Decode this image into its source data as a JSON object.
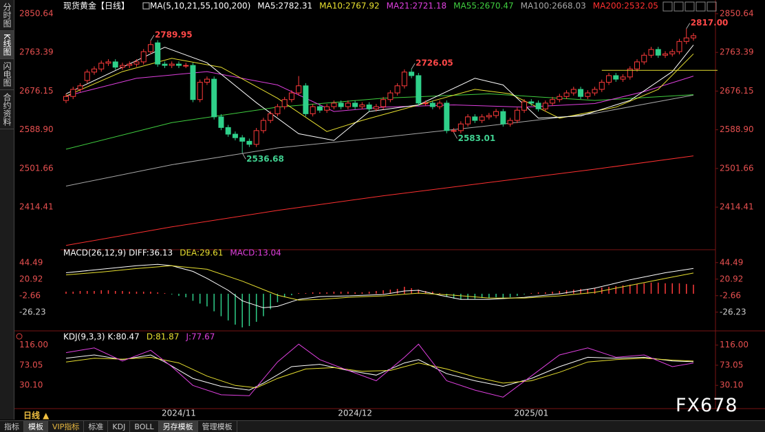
{
  "header": {
    "title": "现货黄金【日线】"
  },
  "sidebar": [
    "分时图",
    "K线图",
    "闪电图",
    "合约资料"
  ],
  "toolbar": {
    "period": "日线 ▲",
    "buttons": [
      "指标",
      "模板",
      "VIP指标",
      "标准",
      "KDJ",
      "BOLL",
      "另存模板",
      "管理模板"
    ]
  },
  "watermark": "FX678",
  "chart_data": [
    {
      "type": "candlestick",
      "legend_title": "MA(5,10,21,55,100,200)",
      "up_color": "#ff3b3b",
      "down_color": "#2fd08a",
      "open": [
        2655,
        2664,
        2680,
        2700,
        2719,
        2726,
        2739,
        2742,
        2730,
        2734,
        2737,
        2742,
        2765,
        2785,
        2737,
        2734,
        2737,
        2734,
        2734,
        2657,
        2696,
        2703,
        2618,
        2594,
        2579,
        2571,
        2563,
        2556,
        2587,
        2610,
        2625,
        2641,
        2657,
        2672,
        2688,
        2625,
        2641,
        2633,
        2641,
        2649,
        2641,
        2649,
        2641,
        2645,
        2636,
        2641,
        2657,
        2672,
        2688,
        2719,
        2711,
        2649,
        2649,
        2641,
        2649,
        2587,
        2587,
        2602,
        2618,
        2610,
        2618,
        2621,
        2630,
        2602,
        2610,
        2633,
        2652,
        2649,
        2636,
        2649,
        2657,
        2664,
        2672,
        2680,
        2664,
        2672,
        2680,
        2696,
        2711,
        2703,
        2708,
        2726,
        2742,
        2757,
        2770,
        2757,
        2760,
        2765,
        2788,
        2796
      ],
      "high": [
        2670,
        2686,
        2694,
        2725,
        2732,
        2745,
        2748,
        2748,
        2740,
        2743,
        2748,
        2771,
        2789.95,
        2791,
        2743,
        2743,
        2743,
        2740,
        2740,
        2702,
        2709,
        2709,
        2624,
        2600,
        2585,
        2577,
        2569,
        2593,
        2616,
        2631,
        2647,
        2663,
        2678,
        2710,
        2694,
        2647,
        2647,
        2647,
        2655,
        2655,
        2655,
        2655,
        2651,
        2651,
        2647,
        2663,
        2678,
        2694,
        2725,
        2726.05,
        2717,
        2655,
        2655,
        2655,
        2655,
        2593,
        2608,
        2624,
        2624,
        2624,
        2627,
        2636,
        2636,
        2616,
        2639,
        2658,
        2658,
        2655,
        2655,
        2663,
        2670,
        2678,
        2686,
        2686,
        2678,
        2686,
        2702,
        2717,
        2717,
        2714,
        2732,
        2748,
        2763,
        2776,
        2776,
        2766,
        2771,
        2794,
        2817,
        2807
      ],
      "low": [
        2649,
        2658,
        2674,
        2694,
        2713,
        2720,
        2733,
        2724,
        2724,
        2728,
        2731,
        2736,
        2759,
        2731,
        2728,
        2728,
        2728,
        2728,
        2651,
        2651,
        2690,
        2612,
        2588,
        2573,
        2565,
        2536.68,
        2550,
        2550,
        2581,
        2604,
        2619,
        2635,
        2651,
        2666,
        2619,
        2619,
        2627,
        2627,
        2635,
        2635,
        2635,
        2635,
        2635,
        2630,
        2630,
        2635,
        2651,
        2666,
        2682,
        2705,
        2643,
        2643,
        2635,
        2635,
        2581,
        2583.01,
        2581,
        2596,
        2604,
        2604,
        2612,
        2615,
        2596,
        2596,
        2604,
        2627,
        2643,
        2630,
        2630,
        2643,
        2651,
        2658,
        2666,
        2658,
        2658,
        2666,
        2674,
        2690,
        2697,
        2697,
        2702,
        2720,
        2736,
        2751,
        2751,
        2751,
        2754,
        2759,
        2782,
        2790
      ],
      "close": [
        2664,
        2680,
        2688,
        2719,
        2726,
        2739,
        2742,
        2730,
        2734,
        2737,
        2742,
        2765,
        2781,
        2737,
        2734,
        2737,
        2734,
        2734,
        2657,
        2696,
        2703,
        2618,
        2594,
        2579,
        2571,
        2563,
        2556,
        2587,
        2610,
        2625,
        2641,
        2657,
        2672,
        2688,
        2625,
        2641,
        2633,
        2641,
        2649,
        2641,
        2649,
        2641,
        2645,
        2636,
        2641,
        2657,
        2672,
        2688,
        2719,
        2711,
        2649,
        2649,
        2641,
        2649,
        2587,
        2587,
        2602,
        2618,
        2610,
        2618,
        2621,
        2630,
        2602,
        2610,
        2633,
        2652,
        2649,
        2636,
        2649,
        2657,
        2664,
        2672,
        2680,
        2664,
        2672,
        2680,
        2696,
        2711,
        2703,
        2708,
        2726,
        2742,
        2757,
        2770,
        2757,
        2760,
        2765,
        2788,
        2796,
        2801
      ],
      "ylim": [
        2320,
        2866
      ],
      "yticks": [
        2850.64,
        2763.39,
        2676.15,
        {
          "value": 2588.9,
          "label": "2588.90"
        },
        2501.66,
        2414.41
      ],
      "annotations": [
        {
          "index": 12,
          "value": 2789.95,
          "kind": "high"
        },
        {
          "index": 25,
          "value": 2536.68,
          "kind": "low"
        },
        {
          "index": 49,
          "value": 2726.05,
          "kind": "high"
        },
        {
          "index": 55,
          "value": 2583.01,
          "kind": "low"
        },
        {
          "index": 88,
          "value": 2817,
          "label": "2817.00",
          "kind": "high"
        }
      ],
      "hline": {
        "value": 2723,
        "from_index": 76,
        "color": "#e8e030"
      },
      "xlabels": [
        {
          "index": 16,
          "label": "2024/11"
        },
        {
          "index": 41,
          "label": "2024/12"
        },
        {
          "index": 66,
          "label": "2025/01"
        }
      ],
      "series": [
        {
          "name": "MA5:2782.31",
          "color": "#ffffff",
          "x": [
            0,
            8,
            14,
            20,
            27,
            33,
            38,
            43,
            50,
            58,
            62,
            67,
            73,
            80,
            86,
            89
          ],
          "values": [
            2670,
            2730,
            2775,
            2740,
            2650,
            2580,
            2565,
            2630,
            2645,
            2705,
            2690,
            2615,
            2620,
            2655,
            2720,
            2780
          ]
        },
        {
          "name": "MA10:2767.92",
          "color": "#e8e030",
          "x": [
            0,
            8,
            15,
            22,
            30,
            37,
            42,
            50,
            58,
            63,
            70,
            78,
            84,
            89
          ],
          "values": [
            2665,
            2720,
            2750,
            2730,
            2660,
            2585,
            2610,
            2645,
            2680,
            2670,
            2615,
            2640,
            2680,
            2760
          ]
        },
        {
          "name": "MA21:2721.18",
          "color": "#e040e0",
          "x": [
            0,
            10,
            20,
            30,
            38,
            45,
            55,
            65,
            75,
            82,
            89
          ],
          "values": [
            2665,
            2705,
            2720,
            2690,
            2630,
            2640,
            2645,
            2640,
            2648,
            2675,
            2710
          ]
        },
        {
          "name": "MA55:2670.47",
          "color": "#40d040",
          "x": [
            0,
            15,
            30,
            45,
            60,
            75,
            89
          ],
          "values": [
            2545,
            2605,
            2640,
            2660,
            2670,
            2655,
            2668
          ]
        },
        {
          "name": "MA100:2668.03",
          "color": "#a8a8a8",
          "x": [
            0,
            15,
            30,
            45,
            60,
            75,
            89
          ],
          "values": [
            2462,
            2510,
            2548,
            2572,
            2598,
            2626,
            2667
          ]
        },
        {
          "name": "MA200:2532.05",
          "color": "#ff3030",
          "x": [
            0,
            15,
            30,
            45,
            60,
            75,
            89
          ],
          "values": [
            2328,
            2370,
            2407,
            2440,
            2470,
            2500,
            2530
          ]
        }
      ]
    },
    {
      "type": "macd",
      "title": "MACD(26,12,9)",
      "ylim": [
        -50,
        58
      ],
      "yticks": [
        44.49,
        20.92,
        -2.66,
        -26.23
      ],
      "histogram": {
        "name": "MACD:13.04",
        "color": "#e040e0",
        "up_color": "#ff3b3b",
        "down_color": "#2fd08a",
        "values": [
          3,
          3,
          4,
          4,
          4,
          5,
          5,
          4,
          4,
          3,
          3,
          3,
          3,
          2,
          1,
          -1,
          -3,
          -5,
          -10,
          -14,
          -18,
          -25,
          -32,
          -38,
          -44,
          -48,
          -46,
          -40,
          -32,
          -22,
          -12,
          -5,
          -2,
          1,
          1,
          2,
          2,
          2,
          3,
          3,
          3,
          2,
          2,
          3,
          4,
          5,
          6,
          7,
          10,
          8,
          6,
          4,
          3,
          1,
          -4,
          -7,
          -8,
          -8,
          -7,
          -6,
          -6,
          -5,
          -6,
          -5,
          -3,
          -1,
          1,
          2,
          2,
          3,
          4,
          5,
          6,
          7,
          7,
          8,
          9,
          10,
          11,
          12,
          13,
          14,
          15,
          16,
          16,
          15,
          15,
          15,
          14,
          13
        ]
      },
      "series": [
        {
          "name": "DIFF:36.13",
          "color": "#ffffff",
          "x": [
            0,
            5,
            10,
            13,
            15,
            18,
            20,
            23,
            25,
            28,
            30,
            33,
            36,
            40,
            45,
            48,
            50,
            53,
            56,
            60,
            65,
            70,
            75,
            80,
            85,
            89
          ],
          "values": [
            30,
            35,
            40,
            42,
            40,
            32,
            22,
            5,
            -10,
            -20,
            -18,
            -8,
            -4,
            -3,
            -1,
            4,
            5,
            -2,
            -8,
            -8,
            -5,
            0,
            8,
            20,
            30,
            36.13
          ]
        },
        {
          "name": "DEA:29.61",
          "color": "#e8e030",
          "x": [
            0,
            5,
            10,
            15,
            20,
            25,
            30,
            33,
            36,
            40,
            45,
            50,
            55,
            60,
            65,
            70,
            75,
            80,
            85,
            89
          ],
          "values": [
            27,
            31,
            36,
            40,
            35,
            18,
            -2,
            -9,
            -8,
            -5,
            -3,
            1,
            -2,
            -6,
            -6,
            -3,
            2,
            12,
            22,
            29.61
          ]
        }
      ]
    },
    {
      "type": "kdj",
      "title": "KDJ(9,3,3)",
      "ylim": [
        -18,
        139
      ],
      "yticks": [
        {
          "value": 116,
          "label": "116.00"
        },
        73.05,
        {
          "value": 30.1,
          "label": "30.10"
        }
      ],
      "series": [
        {
          "name": "K:80.47",
          "color": "#ffffff",
          "x": [
            0,
            4,
            8,
            12,
            14,
            18,
            22,
            26,
            28,
            32,
            36,
            40,
            44,
            48,
            50,
            54,
            58,
            62,
            66,
            70,
            74,
            78,
            82,
            86,
            89
          ],
          "values": [
            88,
            95,
            85,
            95,
            80,
            45,
            28,
            20,
            35,
            70,
            75,
            62,
            52,
            78,
            85,
            55,
            40,
            28,
            45,
            70,
            90,
            88,
            90,
            82,
            80.47
          ]
        },
        {
          "name": "D:81.87",
          "color": "#e8e030",
          "x": [
            0,
            4,
            8,
            12,
            16,
            20,
            24,
            27,
            30,
            34,
            38,
            42,
            46,
            50,
            54,
            58,
            62,
            66,
            70,
            74,
            78,
            82,
            86,
            89
          ],
          "values": [
            80,
            88,
            86,
            90,
            78,
            50,
            30,
            25,
            45,
            65,
            68,
            60,
            62,
            78,
            65,
            48,
            35,
            40,
            58,
            80,
            85,
            88,
            84,
            81.87
          ]
        },
        {
          "name": "J:77.67",
          "color": "#e040e0",
          "x": [
            0,
            4,
            8,
            12,
            15,
            18,
            22,
            26,
            30,
            33,
            36,
            40,
            44,
            48,
            50,
            54,
            58,
            62,
            66,
            70,
            74,
            78,
            82,
            86,
            89
          ],
          "values": [
            100,
            110,
            82,
            105,
            70,
            30,
            10,
            8,
            80,
            118,
            85,
            62,
            40,
            90,
            118,
            40,
            20,
            5,
            50,
            95,
            110,
            90,
            95,
            70,
            77.67
          ]
        }
      ]
    }
  ]
}
